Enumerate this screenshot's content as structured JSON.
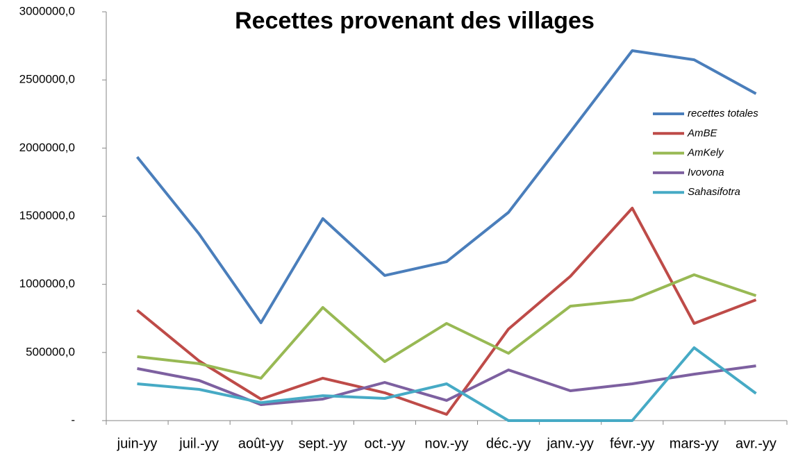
{
  "chart_data": {
    "type": "line",
    "title": "Recettes provenant des villages",
    "categories": [
      "juin-yy",
      "juil.-yy",
      "août-yy",
      "sept.-yy",
      "oct.-yy",
      "nov.-yy",
      "déc.-yy",
      "janv.-yy",
      "févr.-yy",
      "mars-yy",
      "avr.-yy"
    ],
    "series": [
      {
        "name": "recettes totales",
        "color": "#4a7ebb",
        "values": [
          1935000,
          1370000,
          718000,
          1482000,
          1065000,
          1166000,
          1528000,
          2119000,
          2715000,
          2648000,
          2399000
        ]
      },
      {
        "name": "AmBE",
        "color": "#be4b48",
        "values": [
          810000,
          438000,
          158000,
          311000,
          204000,
          46000,
          672000,
          1059000,
          1559000,
          713000,
          886000
        ]
      },
      {
        "name": "AmKely",
        "color": "#98b954",
        "values": [
          469000,
          418000,
          311000,
          830000,
          433000,
          713000,
          494000,
          840000,
          886000,
          1070000,
          917000
        ]
      },
      {
        "name": "Ivovona",
        "color": "#7d60a0",
        "values": [
          382000,
          295000,
          117000,
          158000,
          280000,
          148000,
          372000,
          219000,
          270000,
          341000,
          402000
        ]
      },
      {
        "name": "Sahasifotra",
        "color": "#46aac5",
        "values": [
          270000,
          229000,
          132000,
          183000,
          163000,
          270000,
          0,
          0,
          0,
          535000,
          199000
        ]
      }
    ],
    "ylim": [
      0,
      3000000
    ],
    "yticks": [
      {
        "value": 0,
        "label": "-"
      },
      {
        "value": 500000,
        "label": "500000,0"
      },
      {
        "value": 1000000,
        "label": "1000000,0"
      },
      {
        "value": 1500000,
        "label": "1500000,0"
      },
      {
        "value": 2000000,
        "label": "2000000,0"
      },
      {
        "value": 2500000,
        "label": "2500000,0"
      },
      {
        "value": 3000000,
        "label": "3000000,0"
      }
    ],
    "legend": "right"
  }
}
